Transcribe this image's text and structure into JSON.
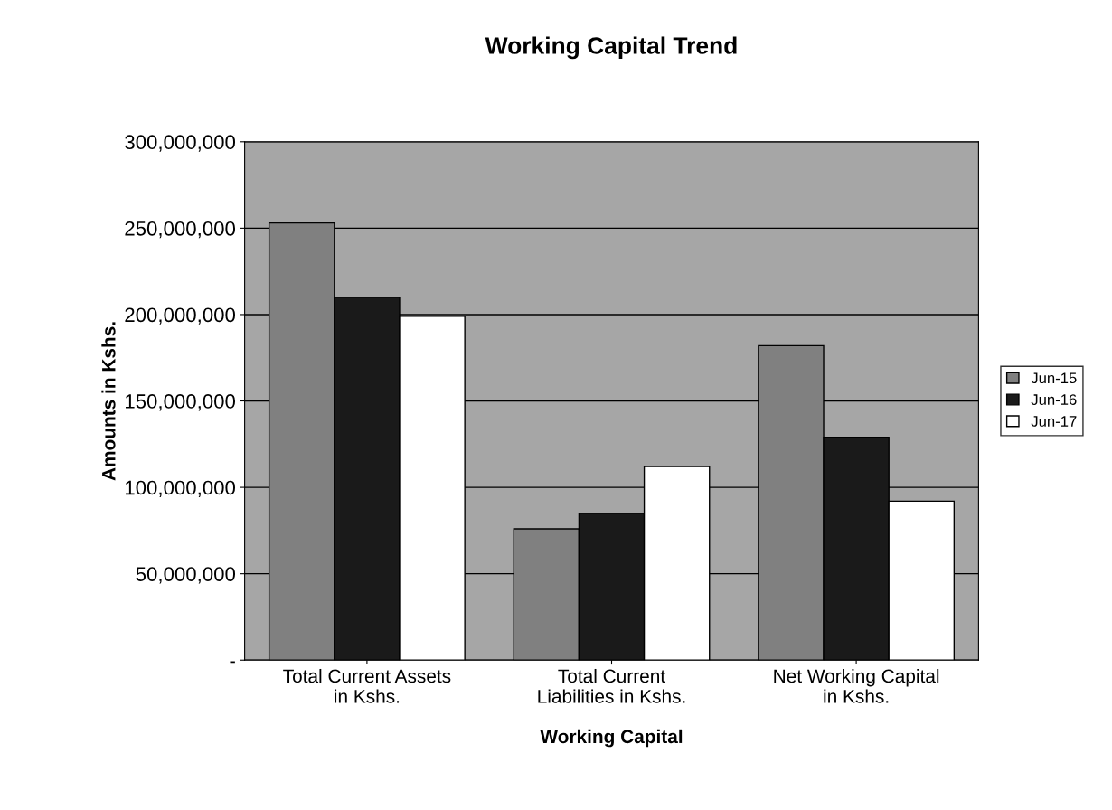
{
  "chart_data": {
    "type": "bar",
    "title": "Working Capital Trend",
    "xlabel": "Working Capital",
    "ylabel": "Amounts in Kshs.",
    "categories": [
      "Total Current Assets\nin Kshs.",
      "Total Current\nLiabilities in Kshs.",
      "Net Working Capital\nin Kshs."
    ],
    "series": [
      {
        "name": "Jun-15",
        "color": "#808080",
        "values": [
          253000000,
          76000000,
          182000000
        ]
      },
      {
        "name": "Jun-16",
        "color": "#1a1a1a",
        "values": [
          210000000,
          85000000,
          129000000
        ]
      },
      {
        "name": "Jun-17",
        "color": "#ffffff",
        "values": [
          199000000,
          112000000,
          92000000
        ]
      }
    ],
    "ylim": [
      0,
      300000000
    ],
    "yticks": [
      {
        "value": 0,
        "label": "-"
      },
      {
        "value": 50000000,
        "label": "50,000,000"
      },
      {
        "value": 100000000,
        "label": "100,000,000"
      },
      {
        "value": 150000000,
        "label": "150,000,000"
      },
      {
        "value": 200000000,
        "label": "200,000,000"
      },
      {
        "value": 250000000,
        "label": "250,000,000"
      },
      {
        "value": 300000000,
        "label": "300,000,000"
      }
    ],
    "grid": "y",
    "legend": "right"
  }
}
